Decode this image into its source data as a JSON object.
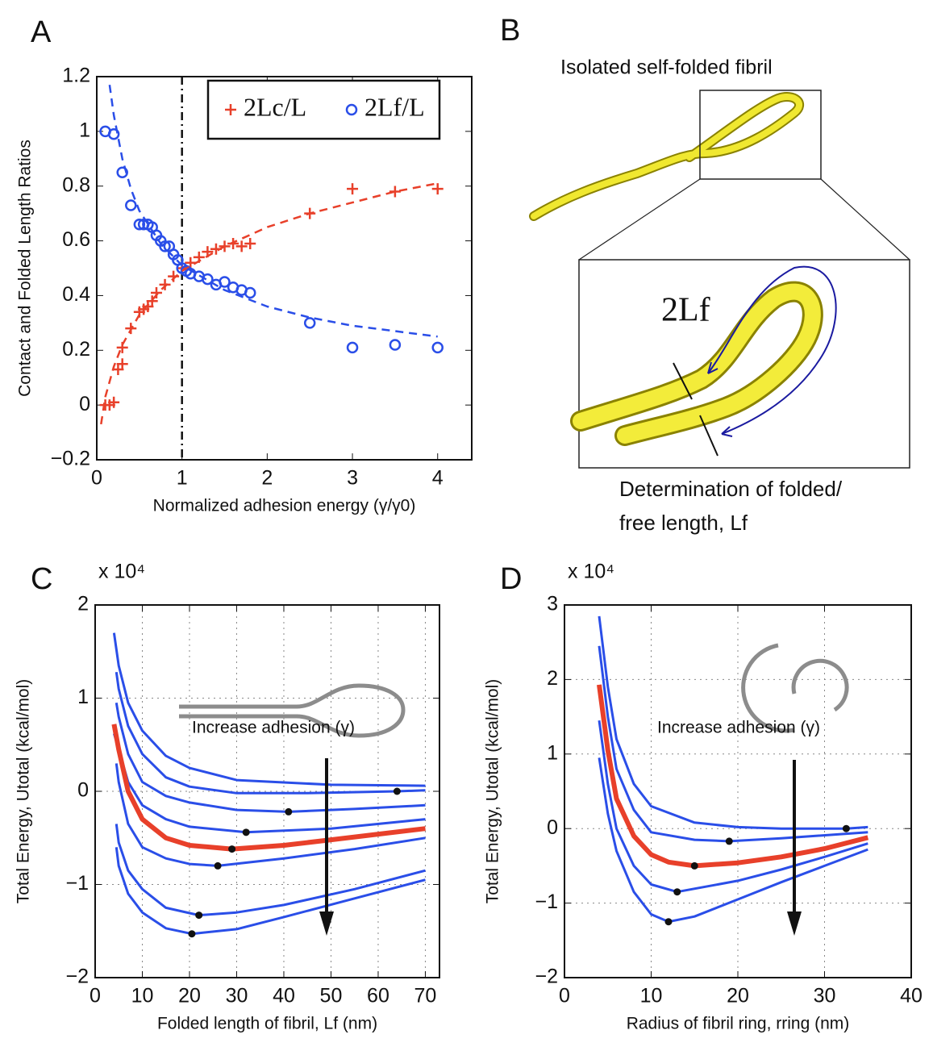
{
  "chart_data": [
    {
      "type": "scatter",
      "letter": "A",
      "xlabel": "Normalized adhesion energy (γ/γ0)",
      "ylabel": "Contact and Folded Length Ratios",
      "xlim": [
        0,
        4.4
      ],
      "ylim": [
        -0.2,
        1.2
      ],
      "xticks": [
        0,
        1,
        2,
        3,
        4
      ],
      "yticks": [
        {
          "value": -0.2,
          "label": "−0.2"
        },
        0,
        0.2,
        0.4,
        0.6,
        0.8,
        1,
        1.2
      ],
      "grid": false,
      "vline": 1,
      "legend": "top-right",
      "series": [
        {
          "name": "2Lc/L",
          "color": "#e8402a",
          "marker": "+",
          "x": [
            0.1,
            0.15,
            0.2,
            0.25,
            0.3,
            0.3,
            0.4,
            0.5,
            0.55,
            0.6,
            0.65,
            0.7,
            0.8,
            0.9,
            1.0,
            1.1,
            1.2,
            1.3,
            1.4,
            1.5,
            1.6,
            1.7,
            1.8,
            2.5,
            3.0,
            3.5,
            4.0
          ],
          "values": [
            0.0,
            0.0,
            0.01,
            0.13,
            0.15,
            0.21,
            0.28,
            0.34,
            0.35,
            0.36,
            0.38,
            0.41,
            0.44,
            0.47,
            0.5,
            0.52,
            0.54,
            0.56,
            0.57,
            0.58,
            0.59,
            0.58,
            0.59,
            0.7,
            0.79,
            0.78,
            0.79
          ]
        },
        {
          "name": "2Lf/L",
          "color": "#2a4ee8",
          "marker": "o",
          "x": [
            0.1,
            0.2,
            0.3,
            0.4,
            0.5,
            0.55,
            0.6,
            0.65,
            0.7,
            0.75,
            0.8,
            0.85,
            0.9,
            0.95,
            1.0,
            1.05,
            1.1,
            1.2,
            1.3,
            1.4,
            1.5,
            1.6,
            1.7,
            1.8,
            2.5,
            3.0,
            3.5,
            4.0
          ],
          "values": [
            1.0,
            0.99,
            0.85,
            0.73,
            0.66,
            0.66,
            0.66,
            0.65,
            0.62,
            0.6,
            0.58,
            0.58,
            0.55,
            0.53,
            0.5,
            0.49,
            0.48,
            0.47,
            0.46,
            0.44,
            0.45,
            0.43,
            0.42,
            0.41,
            0.3,
            0.21,
            0.22,
            0.21
          ]
        },
        {
          "color": "#e8402a",
          "dash": true,
          "x": [
            0.05,
            0.1,
            0.2,
            0.3,
            0.5,
            0.75,
            1,
            1.5,
            2,
            2.5,
            3,
            3.5,
            4
          ],
          "values": [
            -0.07,
            0.03,
            0.14,
            0.22,
            0.33,
            0.42,
            0.49,
            0.58,
            0.65,
            0.7,
            0.74,
            0.78,
            0.81
          ]
        },
        {
          "color": "#2a4ee8",
          "dash": true,
          "x": [
            0.15,
            0.2,
            0.3,
            0.4,
            0.5,
            0.75,
            1,
            1.5,
            2,
            2.5,
            3,
            3.5,
            4
          ],
          "values": [
            1.17,
            1.06,
            0.9,
            0.79,
            0.71,
            0.59,
            0.51,
            0.42,
            0.36,
            0.32,
            0.29,
            0.27,
            0.25
          ]
        }
      ]
    },
    {
      "type": "line",
      "letter": "C",
      "multiplier": "x 10⁴",
      "xlabel": "Folded length of fibril, Lf (nm)",
      "ylabel": "Total Energy, Utotal (kcal/mol)",
      "annotation": "Increase adhesion (γ)",
      "xlim": [
        0,
        73
      ],
      "ylim": [
        -2,
        2
      ],
      "xticks": [
        0,
        10,
        20,
        30,
        40,
        50,
        60,
        70
      ],
      "yticks": [
        {
          "value": -2,
          "label": "−2"
        },
        {
          "value": -1,
          "label": "−1"
        },
        0,
        1,
        2
      ],
      "grid": true,
      "series": [
        {
          "color": "#2a4ee8",
          "width": 3,
          "x": [
            4,
            5,
            7,
            10,
            15,
            20,
            30,
            50,
            70
          ],
          "values": [
            1.7,
            1.35,
            0.95,
            0.65,
            0.38,
            0.25,
            0.12,
            0.07,
            0.06
          ]
        },
        {
          "color": "#2a4ee8",
          "width": 3,
          "x": [
            4.5,
            5,
            7,
            10,
            15,
            20,
            30,
            45,
            64,
            70
          ],
          "values": [
            1.28,
            1.1,
            0.7,
            0.4,
            0.15,
            0.05,
            -0.02,
            -0.02,
            0.0,
            0.01
          ]
        },
        {
          "color": "#2a4ee8",
          "width": 3,
          "x": [
            4.5,
            5,
            7,
            10,
            15,
            20,
            30,
            41,
            55,
            70
          ],
          "values": [
            0.95,
            0.8,
            0.4,
            0.1,
            -0.05,
            -0.12,
            -0.2,
            -0.22,
            -0.19,
            -0.15
          ]
        },
        {
          "color": "#2a4ee8",
          "width": 3,
          "x": [
            4,
            5,
            7,
            10,
            15,
            20,
            32,
            50,
            70
          ],
          "values": [
            0.62,
            0.45,
            0.1,
            -0.15,
            -0.3,
            -0.38,
            -0.44,
            -0.4,
            -0.3
          ]
        },
        {
          "color": "#e8402a",
          "width": 6,
          "x": [
            4,
            5,
            7,
            10,
            15,
            20,
            29,
            40,
            50,
            70
          ],
          "values": [
            0.72,
            0.45,
            0.0,
            -0.3,
            -0.5,
            -0.58,
            -0.62,
            -0.58,
            -0.52,
            -0.4
          ]
        },
        {
          "color": "#2a4ee8",
          "width": 3,
          "x": [
            4.5,
            5,
            7,
            10,
            15,
            20,
            26,
            40,
            55,
            70
          ],
          "values": [
            0.3,
            0.1,
            -0.35,
            -0.6,
            -0.72,
            -0.78,
            -0.8,
            -0.72,
            -0.62,
            -0.5
          ]
        },
        {
          "color": "#2a4ee8",
          "width": 3,
          "x": [
            4.5,
            5,
            7,
            10,
            15,
            22,
            30,
            40,
            55,
            70
          ],
          "values": [
            -0.35,
            -0.55,
            -0.85,
            -1.05,
            -1.25,
            -1.33,
            -1.3,
            -1.22,
            -1.05,
            -0.85
          ]
        },
        {
          "color": "#2a4ee8",
          "width": 3,
          "x": [
            4.5,
            5,
            7,
            10,
            15,
            20.5,
            30,
            40,
            55,
            70
          ],
          "values": [
            -0.6,
            -0.8,
            -1.1,
            -1.3,
            -1.47,
            -1.53,
            -1.48,
            -1.35,
            -1.15,
            -0.95
          ]
        },
        {
          "color": "#111111",
          "marker": "dot",
          "x": [
            64,
            41,
            32,
            29,
            26,
            22,
            20.5
          ],
          "values": [
            0.0,
            -0.22,
            -0.44,
            -0.62,
            -0.8,
            -1.33,
            -1.53
          ]
        }
      ]
    },
    {
      "type": "line",
      "letter": "D",
      "multiplier": "x 10⁴",
      "xlabel": "Radius of fibril ring, rring (nm)",
      "ylabel": "Total Energy, Utotal (kcal/mol)",
      "annotation": "Increase adhesion (γ)",
      "xlim": [
        0,
        40
      ],
      "ylim": [
        -2,
        3
      ],
      "xticks": [
        0,
        10,
        20,
        30,
        40
      ],
      "yticks": [
        {
          "value": -2,
          "label": "−2"
        },
        {
          "value": -1,
          "label": "−1"
        },
        0,
        1,
        2,
        3
      ],
      "grid": true,
      "series": [
        {
          "color": "#2a4ee8",
          "width": 3,
          "x": [
            4,
            5,
            6,
            8,
            10,
            15,
            20,
            25,
            32.5,
            35
          ],
          "values": [
            2.85,
            1.9,
            1.2,
            0.6,
            0.3,
            0.08,
            0.02,
            0.0,
            0.0,
            0.02
          ]
        },
        {
          "color": "#2a4ee8",
          "width": 3,
          "x": [
            4,
            5,
            6,
            8,
            10,
            15,
            19,
            25,
            35
          ],
          "values": [
            2.45,
            1.5,
            0.8,
            0.25,
            -0.05,
            -0.15,
            -0.17,
            -0.13,
            -0.05
          ]
        },
        {
          "color": "#e8402a",
          "width": 6,
          "x": [
            4,
            5,
            6,
            8,
            10,
            12,
            15,
            20,
            25,
            30,
            35
          ],
          "values": [
            1.93,
            1.05,
            0.4,
            -0.1,
            -0.35,
            -0.45,
            -0.5,
            -0.46,
            -0.38,
            -0.27,
            -0.12
          ]
        },
        {
          "color": "#2a4ee8",
          "width": 3,
          "x": [
            4,
            5,
            6,
            8,
            10,
            13,
            20,
            25,
            30,
            35
          ],
          "values": [
            1.45,
            0.6,
            0.0,
            -0.5,
            -0.75,
            -0.85,
            -0.7,
            -0.55,
            -0.38,
            -0.2
          ]
        },
        {
          "color": "#2a4ee8",
          "width": 3,
          "x": [
            4,
            5,
            6,
            8,
            10,
            12,
            15,
            20,
            25,
            30,
            35
          ],
          "values": [
            0.95,
            0.2,
            -0.3,
            -0.85,
            -1.15,
            -1.25,
            -1.18,
            -0.95,
            -0.72,
            -0.5,
            -0.28
          ]
        },
        {
          "color": "#111111",
          "marker": "dot",
          "x": [
            32.5,
            19,
            15,
            13,
            12
          ],
          "values": [
            0.0,
            -0.17,
            -0.5,
            -0.85,
            -1.25
          ]
        }
      ]
    }
  ],
  "diagram": {
    "letter": "B",
    "title": "Isolated self-folded fibril",
    "inset_label": "2Lf",
    "caption": [
      "Determination of folded/",
      "free length, Lf"
    ]
  }
}
